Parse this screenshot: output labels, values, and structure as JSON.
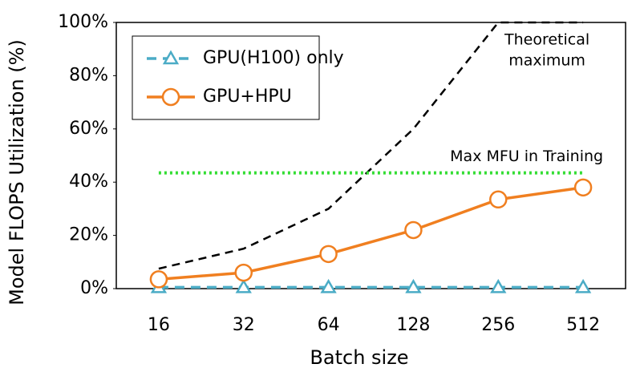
{
  "chart_data": {
    "type": "line",
    "x_label": "Batch size",
    "y_label": "Model FLOPS Utilization (%)",
    "categories": [
      "16",
      "32",
      "64",
      "128",
      "256",
      "512"
    ],
    "series": [
      {
        "name": "GPU(H100) only",
        "color": "#4bacc6",
        "dash": true,
        "marker": "triangle",
        "values": [
          0.5,
          0.5,
          0.5,
          0.5,
          0.5,
          0.5
        ]
      },
      {
        "name": "GPU+HPU",
        "color": "#f07f20",
        "dash": false,
        "marker": "circle",
        "values": [
          3.5,
          6,
          13,
          22,
          33.5,
          38
        ]
      }
    ],
    "reference_lines": [
      {
        "label": [
          "Theoretical",
          "maximum"
        ],
        "color": "#000000",
        "values": [
          7.5,
          15,
          30,
          60,
          100,
          100
        ]
      },
      {
        "label": [
          "Max MFU in Training"
        ],
        "color": "#33dd33",
        "values": [
          43.5,
          43.5,
          43.5,
          43.5,
          43.5,
          43.5
        ]
      }
    ],
    "ylim": [
      0,
      100
    ],
    "yticks": [
      {
        "value": 0,
        "label": "0%"
      },
      {
        "value": 20,
        "label": "20%"
      },
      {
        "value": 40,
        "label": "40%"
      },
      {
        "value": 60,
        "label": "60%"
      },
      {
        "value": 80,
        "label": "80%"
      },
      {
        "value": 100,
        "label": "100%"
      }
    ],
    "legend": "top-left"
  }
}
